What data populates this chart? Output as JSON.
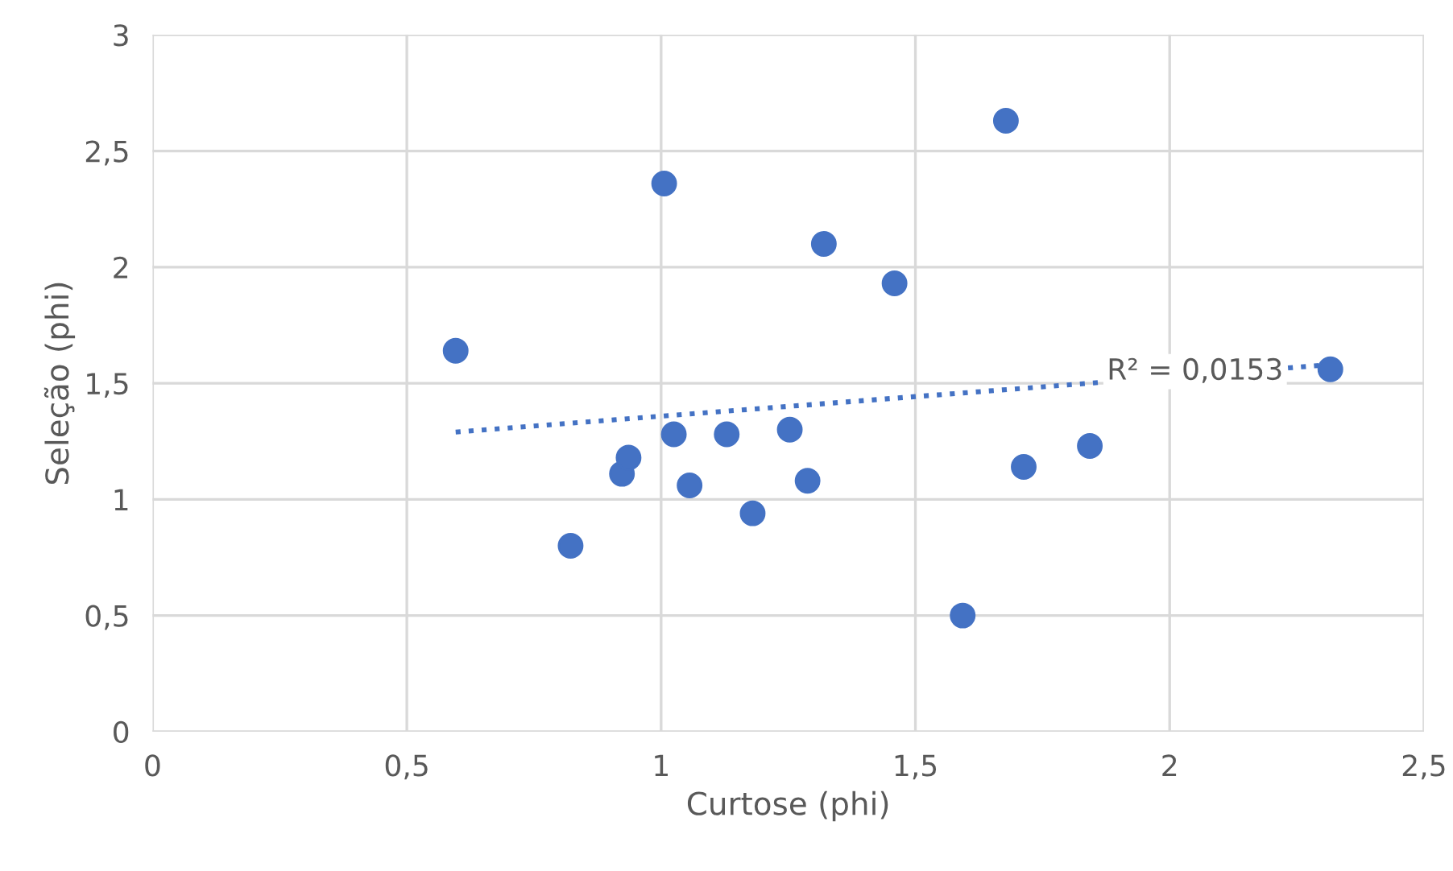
{
  "chart_data": {
    "type": "scatter",
    "xlabel": "Curtose (phi)",
    "ylabel": "Seleção (phi)",
    "xlim": [
      0,
      2.5
    ],
    "ylim": [
      0,
      3
    ],
    "xticks": [
      0,
      {
        "value": 0.5,
        "label": "0,5"
      },
      1,
      {
        "value": 1.5,
        "label": "1,5"
      },
      2,
      {
        "value": 2.5,
        "label": "2,5"
      }
    ],
    "yticks": [
      0,
      {
        "value": 0.5,
        "label": "0,5"
      },
      1,
      {
        "value": 1.5,
        "label": "1,5"
      },
      2,
      {
        "value": 2.5,
        "label": "2,5"
      },
      3
    ],
    "grid": true,
    "legend": false,
    "series": [
      {
        "color": "#4472c4",
        "marker": "circle",
        "x": [
          0.596,
          0.822,
          0.923,
          0.936,
          1.006,
          1.025,
          1.056,
          1.129,
          1.18,
          1.253,
          1.288,
          1.32,
          1.459,
          1.593,
          1.678,
          1.713,
          1.843,
          2.316
        ],
        "values": [
          1.64,
          0.8,
          1.11,
          1.18,
          2.36,
          1.28,
          1.06,
          1.28,
          0.94,
          1.3,
          1.08,
          2.1,
          1.93,
          0.5,
          2.63,
          1.14,
          1.23,
          1.56
        ]
      },
      {
        "type": "line",
        "color": "#4472c4",
        "marker": "none",
        "line_style": "dotted",
        "x": [
          0.596,
          2.316
        ],
        "values": [
          1.29,
          1.58
        ]
      }
    ],
    "annotations": [
      {
        "text": "R² = 0,0153",
        "x": 2.05,
        "y": 1.55
      }
    ]
  }
}
